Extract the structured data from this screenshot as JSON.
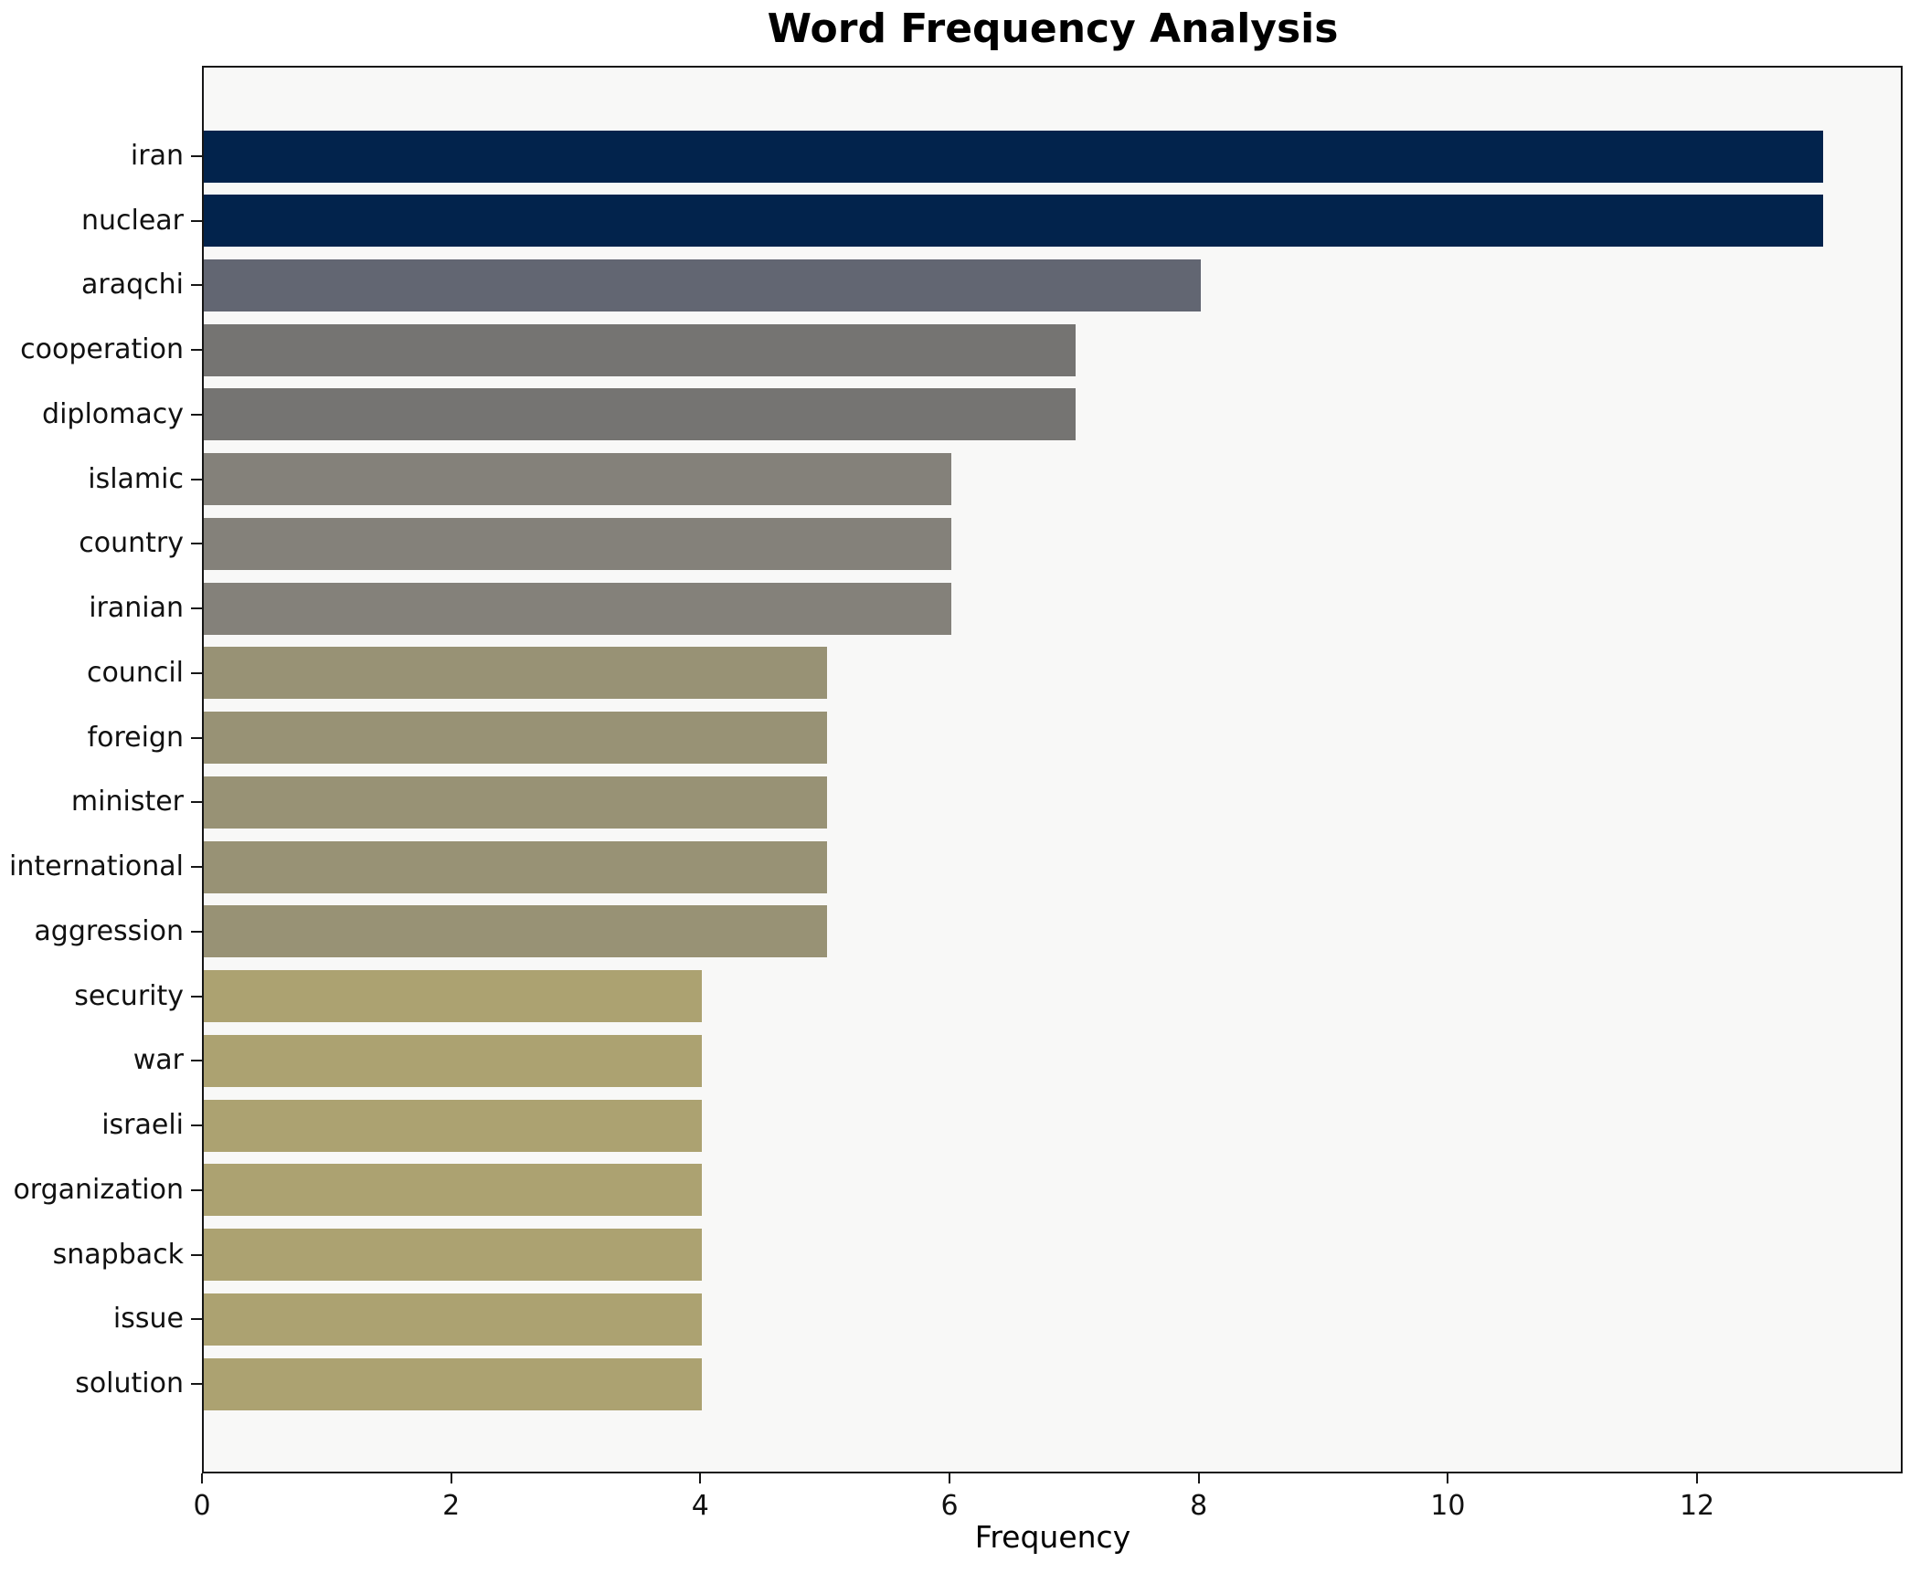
{
  "title": "Word Frequency Analysis",
  "chart_data": {
    "type": "bar",
    "orientation": "horizontal",
    "title": "Word Frequency Analysis",
    "xlabel": "Frequency",
    "ylabel": "",
    "categories": [
      "iran",
      "nuclear",
      "araqchi",
      "cooperation",
      "diplomacy",
      "islamic",
      "country",
      "iranian",
      "council",
      "foreign",
      "minister",
      "international",
      "aggression",
      "security",
      "war",
      "israeli",
      "organization",
      "snapback",
      "issue",
      "solution"
    ],
    "values": [
      13,
      13,
      8,
      7,
      7,
      6,
      6,
      6,
      5,
      5,
      5,
      5,
      5,
      4,
      4,
      4,
      4,
      4,
      4,
      4
    ],
    "bar_colors": [
      "#02234c",
      "#02234c",
      "#626672",
      "#757472",
      "#757472",
      "#84817a",
      "#84817a",
      "#84817a",
      "#989275",
      "#989275",
      "#989275",
      "#989275",
      "#989275",
      "#aca271",
      "#aca271",
      "#aca271",
      "#aca271",
      "#aca271",
      "#aca271",
      "#aca271"
    ],
    "xticks": [
      0,
      2,
      4,
      6,
      8,
      10,
      12
    ],
    "xlim": [
      0,
      13.65
    ],
    "grid": false,
    "legend": "none",
    "plot_background": "#f8f8f7",
    "figure_background": "#ffffff",
    "axis_color": "#161616"
  }
}
